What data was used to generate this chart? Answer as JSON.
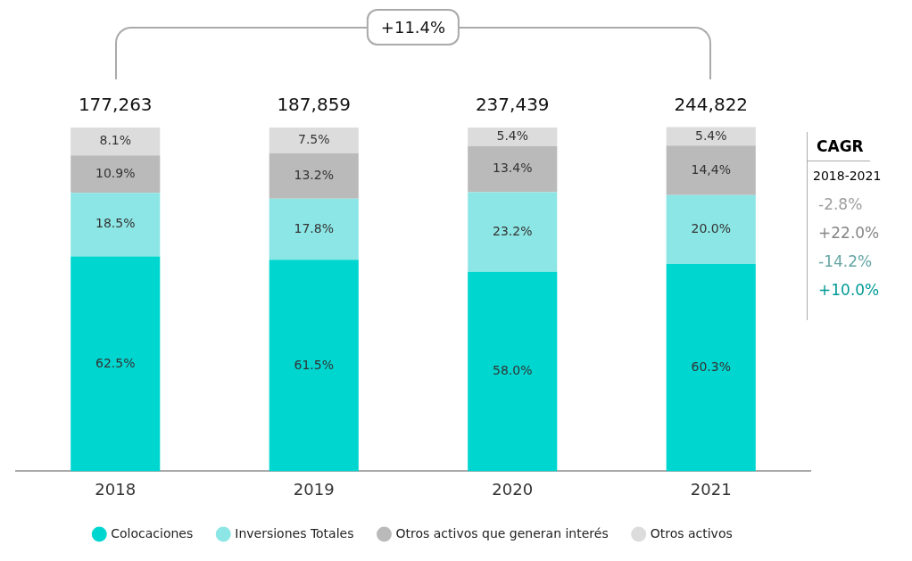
{
  "chart_data": {
    "type": "bar",
    "stacked": true,
    "legend": "bottom",
    "tick_labels": "x",
    "categories": [
      "2018",
      "2019",
      "2020",
      "2021"
    ],
    "series": [
      {
        "name": "Colocaciones",
        "color": "#00d6d0",
        "values": [
          62.5,
          61.5,
          58.0,
          60.3
        ],
        "value_labels": [
          "62.5%",
          "61.5%",
          "58.0%",
          "60.3%"
        ]
      },
      {
        "name": "Inversiones Totales",
        "color": "#8ce6e5",
        "values": [
          18.5,
          17.8,
          23.2,
          20.0
        ],
        "value_labels": [
          "18.5%",
          "17.8%",
          "23.2%",
          "20.0%"
        ]
      },
      {
        "name": "Otros activos que generan interés",
        "color": "#bababa",
        "values": [
          10.9,
          13.2,
          13.4,
          14.4
        ],
        "value_labels": [
          "10.9%",
          "13.2%",
          "13.4%",
          "14,4%"
        ]
      },
      {
        "name": "Otros activos",
        "color": "#dcdcdc",
        "values": [
          8.1,
          7.5,
          5.4,
          5.4
        ],
        "value_labels": [
          "8.1%",
          "7.5%",
          "5.4%",
          "5.4%"
        ]
      }
    ],
    "annotations": [
      "177,263",
      "187,859",
      "237,439",
      "244,822",
      "+11.4%",
      "CAGR",
      "2018-2021",
      "-2.8%",
      "+22.0%",
      "-14.2%",
      "+10.0%"
    ]
  }
}
